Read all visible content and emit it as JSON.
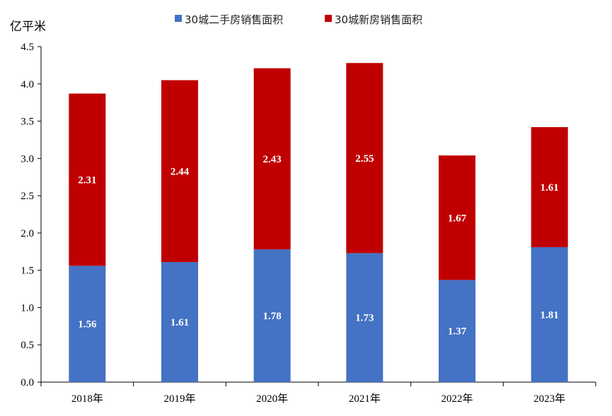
{
  "chart_data": {
    "type": "bar",
    "stacked": true,
    "ylabel": "亿平米",
    "ylim": [
      0,
      4.5
    ],
    "yticks": [
      "0.0",
      "0.5",
      "1.0",
      "1.5",
      "2.0",
      "2.5",
      "3.0",
      "3.5",
      "4.0",
      "4.5"
    ],
    "categories": [
      "2018年",
      "2019年",
      "2020年",
      "2021年",
      "2022年",
      "2023年"
    ],
    "legend_position": "top-center",
    "grid": false,
    "series": [
      {
        "name": "30城二手房销售面积",
        "color": "#4472C4",
        "values": [
          1.56,
          1.61,
          1.78,
          1.73,
          1.37,
          1.81
        ],
        "labels": [
          "1.56",
          "1.61",
          "1.78",
          "1.73",
          "1.37",
          "1.81"
        ]
      },
      {
        "name": "30城新房销售面积",
        "color": "#C00000",
        "values": [
          2.31,
          2.44,
          2.43,
          2.55,
          1.67,
          1.61
        ],
        "labels": [
          "2.31",
          "2.44",
          "2.43",
          "2.55",
          "1.67",
          "1.61"
        ]
      }
    ]
  }
}
